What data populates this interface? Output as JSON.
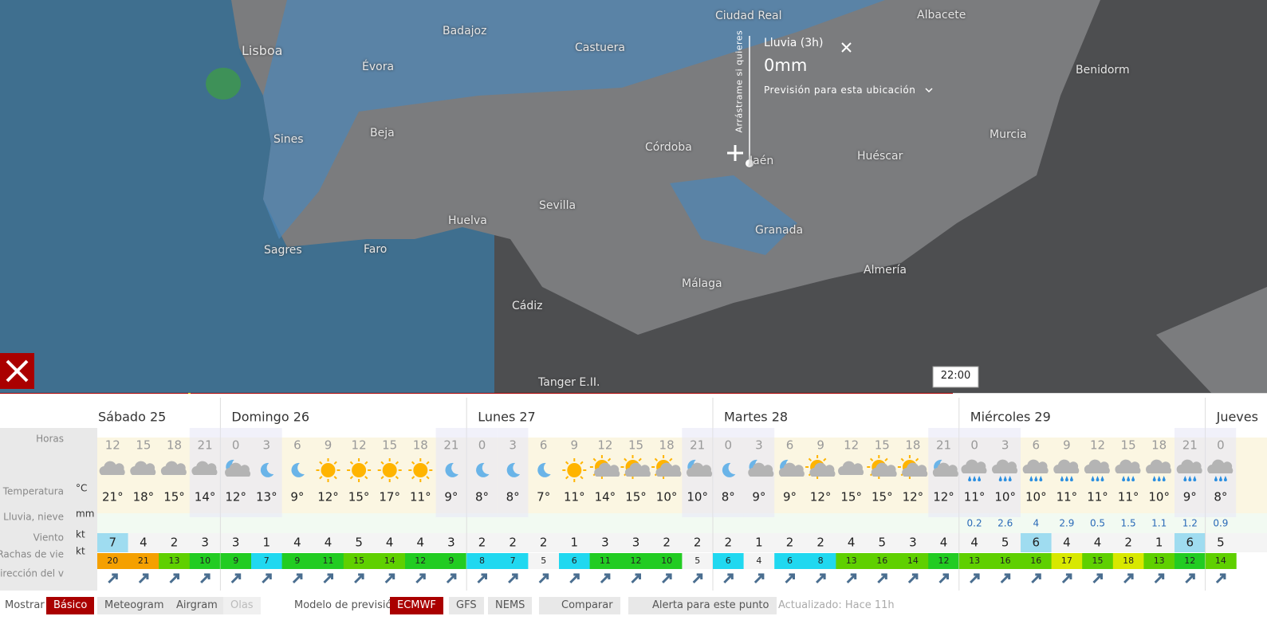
{
  "map": {
    "labels": [
      "Ciudad Real",
      "Albacete",
      "Badajoz",
      "Castuera",
      "Lisboa",
      "Évora",
      "Benidorm",
      "Sines",
      "Beja",
      "Córdoba",
      "Murcia",
      "Jaén",
      "Huéscar",
      "Sevilla",
      "Huelva",
      "Granada",
      "Sagres",
      "Faro",
      "Almería",
      "Málaga",
      "Cádiz",
      "Tanger E.II."
    ],
    "popup": {
      "title": "Lluvia (3h)",
      "value": "0mm",
      "link": "Previsión para esta ubicación",
      "drag_hint": "Arrástrame si quieres"
    },
    "time_label": "22:00"
  },
  "forecast": {
    "row_labels": [
      {
        "label": "Horas"
      },
      {
        "label": "Temperatura",
        "unit": "°C"
      },
      {
        "label": "Lluvia, nieve",
        "unit": "mm"
      },
      {
        "label": "Viento",
        "unit": "kt"
      },
      {
        "label": "Rachas de vie",
        "unit": "kt"
      },
      {
        "label": "Dirección del v"
      }
    ],
    "days": [
      {
        "name": "Sábado 25",
        "hours": [
          12,
          15,
          18,
          21
        ],
        "icons": [
          "cloud",
          "cloud",
          "cloud",
          "cloud"
        ],
        "temps": [
          "21°",
          "18°",
          "15°",
          "14°"
        ],
        "wind": [
          7,
          4,
          2,
          3
        ],
        "gusts": [
          20,
          21,
          13,
          10
        ]
      },
      {
        "name": "Domingo 26",
        "hours": [
          0,
          3,
          6,
          9,
          12,
          15,
          18,
          21
        ],
        "icons": [
          "moon-cloud",
          "moon",
          "moon",
          "sun",
          "sun",
          "sun",
          "sun",
          "moon"
        ],
        "temps": [
          "12°",
          "13°",
          "9°",
          "12°",
          "15°",
          "17°",
          "11°",
          "9°"
        ],
        "wind": [
          3,
          1,
          4,
          4,
          5,
          4,
          4,
          3
        ],
        "gusts": [
          9,
          7,
          9,
          11,
          15,
          14,
          12,
          9
        ]
      },
      {
        "name": "Lunes 27",
        "hours": [
          0,
          3,
          6,
          9,
          12,
          15,
          18,
          21
        ],
        "icons": [
          "moon",
          "moon",
          "moon",
          "sun",
          "sun-cloud",
          "sun-cloud",
          "sun-cloud",
          "moon-cloud"
        ],
        "temps": [
          "8°",
          "8°",
          "7°",
          "11°",
          "14°",
          "15°",
          "10°",
          "10°"
        ],
        "wind": [
          2,
          2,
          2,
          1,
          3,
          3,
          2,
          2
        ],
        "gusts": [
          8,
          7,
          5,
          6,
          11,
          12,
          10,
          5
        ]
      },
      {
        "name": "Martes 28",
        "hours": [
          0,
          3,
          6,
          9,
          12,
          15,
          18,
          21
        ],
        "icons": [
          "moon",
          "moon-cloud",
          "moon-cloud",
          "sun-cloud",
          "cloud",
          "sun-cloud",
          "sun-cloud",
          "moon-cloud"
        ],
        "temps": [
          "8°",
          "9°",
          "9°",
          "12°",
          "15°",
          "15°",
          "12°",
          "12°"
        ],
        "wind": [
          2,
          1,
          2,
          2,
          4,
          5,
          3,
          4
        ],
        "gusts": [
          6,
          4,
          6,
          8,
          13,
          16,
          14,
          12
        ]
      },
      {
        "name": "Miércoles 29",
        "hours": [
          0,
          3,
          6,
          9,
          12,
          15,
          18,
          21
        ],
        "icons": [
          "rain",
          "rain",
          "rain",
          "rain",
          "rain",
          "rain",
          "rain",
          "rain"
        ],
        "temps": [
          "11°",
          "10°",
          "10°",
          "11°",
          "11°",
          "11°",
          "10°",
          "9°"
        ],
        "rain": [
          0.2,
          2.6,
          4,
          2.9,
          0.5,
          1.5,
          1.1,
          1.2
        ],
        "wind": [
          4,
          5,
          6,
          4,
          4,
          2,
          1,
          6
        ],
        "gusts": [
          13,
          16,
          16,
          17,
          15,
          18,
          13,
          12
        ]
      },
      {
        "name": "Jueves",
        "hours": [
          0
        ],
        "icons": [
          "rain"
        ],
        "temps": [
          "8°"
        ],
        "rain": [
          0.9
        ],
        "wind": [
          5
        ],
        "gusts": [
          14
        ]
      }
    ]
  },
  "toolbar": {
    "show_label": "Mostrar",
    "show_options": [
      "Básico",
      "Meteogram",
      "Airgram",
      "Olas"
    ],
    "model_label": "Modelo de previsión",
    "models": [
      "ECMWF",
      "GFS",
      "NEMS"
    ],
    "compare": "Comparar",
    "alert": "Alerta para este punto",
    "updated": "Actualizado: Hace 11h"
  }
}
